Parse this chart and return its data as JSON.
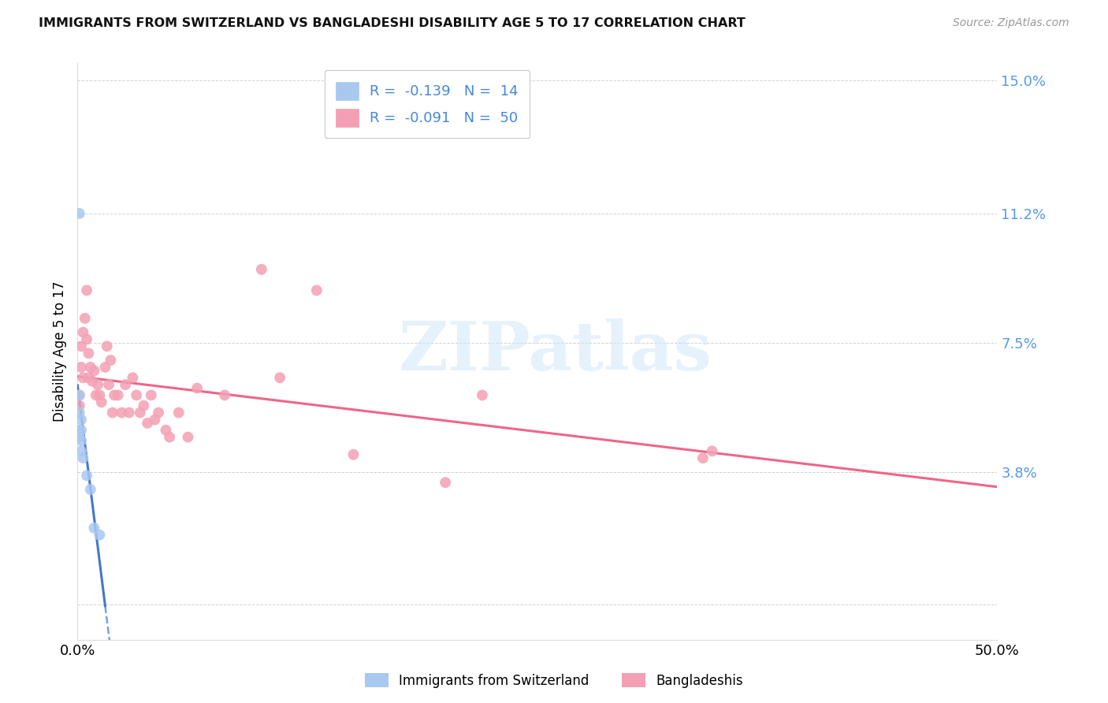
{
  "title": "IMMIGRANTS FROM SWITZERLAND VS BANGLADESHI DISABILITY AGE 5 TO 17 CORRELATION CHART",
  "source": "Source: ZipAtlas.com",
  "ylabel": "Disability Age 5 to 17",
  "xlim": [
    0.0,
    0.5
  ],
  "ylim": [
    -0.01,
    0.155
  ],
  "ytick_vals": [
    0.0,
    0.038,
    0.075,
    0.112,
    0.15
  ],
  "ytick_labels": [
    "",
    "3.8%",
    "7.5%",
    "11.2%",
    "15.0%"
  ],
  "xtick_vals": [
    0.0,
    0.1,
    0.2,
    0.3,
    0.4,
    0.5
  ],
  "xtick_labels": [
    "0.0%",
    "",
    "",
    "",
    "",
    "50.0%"
  ],
  "swiss_R": -0.139,
  "swiss_N": 14,
  "bangla_R": -0.091,
  "bangla_N": 50,
  "swiss_color": "#a8c8f0",
  "bangla_color": "#f4a0b4",
  "swiss_line_color": "#4477cc",
  "bangla_line_color": "#ee6688",
  "watermark_text": "ZIPatlas",
  "background": "#ffffff",
  "swiss_x": [
    0.001,
    0.001,
    0.001,
    0.001,
    0.001,
    0.002,
    0.002,
    0.002,
    0.002,
    0.003,
    0.005,
    0.007,
    0.009,
    0.012
  ],
  "swiss_y": [
    0.112,
    0.06,
    0.055,
    0.05,
    0.048,
    0.053,
    0.05,
    0.047,
    0.044,
    0.042,
    0.037,
    0.033,
    0.022,
    0.02
  ],
  "bangla_x": [
    0.001,
    0.001,
    0.002,
    0.002,
    0.003,
    0.003,
    0.004,
    0.005,
    0.005,
    0.006,
    0.006,
    0.007,
    0.008,
    0.009,
    0.01,
    0.011,
    0.012,
    0.013,
    0.015,
    0.016,
    0.017,
    0.018,
    0.019,
    0.02,
    0.022,
    0.024,
    0.026,
    0.028,
    0.03,
    0.032,
    0.034,
    0.036,
    0.038,
    0.04,
    0.042,
    0.044,
    0.048,
    0.05,
    0.055,
    0.06,
    0.065,
    0.08,
    0.1,
    0.11,
    0.13,
    0.15,
    0.2,
    0.22,
    0.34,
    0.345
  ],
  "bangla_y": [
    0.06,
    0.057,
    0.074,
    0.068,
    0.078,
    0.065,
    0.082,
    0.09,
    0.076,
    0.072,
    0.065,
    0.068,
    0.064,
    0.067,
    0.06,
    0.063,
    0.06,
    0.058,
    0.068,
    0.074,
    0.063,
    0.07,
    0.055,
    0.06,
    0.06,
    0.055,
    0.063,
    0.055,
    0.065,
    0.06,
    0.055,
    0.057,
    0.052,
    0.06,
    0.053,
    0.055,
    0.05,
    0.048,
    0.055,
    0.048,
    0.062,
    0.06,
    0.096,
    0.065,
    0.09,
    0.043,
    0.035,
    0.06,
    0.042,
    0.044
  ]
}
